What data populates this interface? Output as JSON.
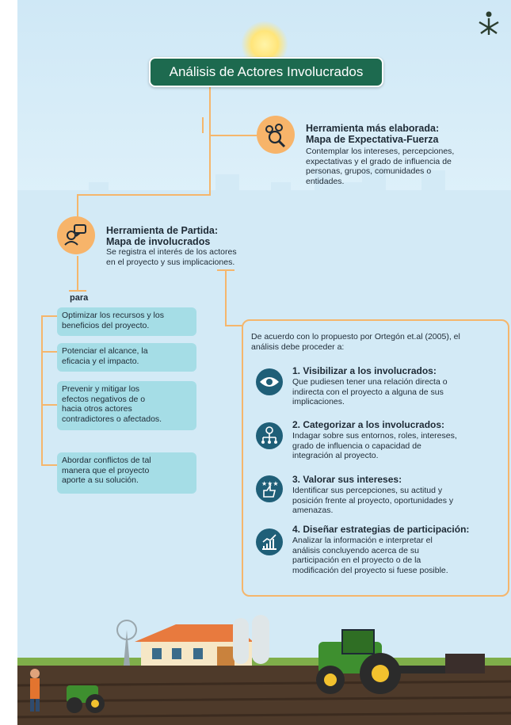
{
  "title": "Análisis de Actores Involucrados",
  "logo": "SENA",
  "expectativa": {
    "heading1": "Herramienta más elaborada:",
    "heading2": "Mapa de Expectativa-Fuerza",
    "line1": "Contemplar los intereses,  percepciones,",
    "line2": "expectativas y el grado de influencia de",
    "line3": "personas, grupos,  comunidades o",
    "line4": "entidades.",
    "icon": "people-search-icon"
  },
  "partida": {
    "heading1": "Herramienta de Partida:",
    "heading2": "Mapa de involucrados",
    "line1": "Se registra el interés de los actores",
    "line2": "en el proyecto y sus implicaciones.",
    "icon": "user-chat-icon"
  },
  "para_label": "para",
  "benefits": [
    {
      "l1": "Optimizar los recursos y los",
      "l2": "beneficios del proyecto.",
      "l3": "",
      "l4": ""
    },
    {
      "l1": "Potenciar el alcance, la",
      "l2": "eficacia y el impacto.",
      "l3": "",
      "l4": ""
    },
    {
      "l1": "Prevenir y mitigar los",
      "l2": "efectos negativos de o",
      "l3": "hacia otros actores",
      "l4": "contradictores o  afectados."
    },
    {
      "l1": "Abordar conflictos de tal",
      "l2": "manera que el proyecto",
      "l3": "aporte a su solución.",
      "l4": ""
    }
  ],
  "panel": {
    "intro1": "De acuerdo con lo propuesto por Ortegón et.al (2005), el",
    "intro2": "análisis debe proceder a:",
    "steps": [
      {
        "title": "1. Visibilizar a los involucrados:",
        "l1": "Que pudiesen tener una relación directa o",
        "l2": "indirecta con el proyecto a alguna de sus",
        "l3": "implicaciones.",
        "l4": "",
        "icon": "eye-icon"
      },
      {
        "title": "2. Categorizar a los involucrados:",
        "l1": "Indagar sobre sus entornos, roles, intereses,",
        "l2": "grado de influencia o capacidad de",
        "l3": "integración al proyecto.",
        "l4": "",
        "icon": "hierarchy-icon"
      },
      {
        "title": "3. Valorar sus intereses:",
        "l1": "Identificar sus percepciones, su actitud y",
        "l2": "posición frente al proyecto, oportunidades y",
        "l3": "amenazas.",
        "l4": "",
        "icon": "thumbs-up-stars-icon"
      },
      {
        "title": "4. Diseñar estrategias de participación:",
        "l1": "Analizar la información e interpretar el",
        "l2": "análisis concluyendo acerca de su",
        "l3": "participación en el proyecto o de la",
        "l4": "modificación del proyecto si fuese posible.",
        "icon": "growth-chart-icon"
      }
    ]
  },
  "colors": {
    "accent": "#f5b66c",
    "title_bg": "#1d6a4f",
    "benefit_bg": "#a5dde6",
    "step_icon": "#1f5f78"
  }
}
